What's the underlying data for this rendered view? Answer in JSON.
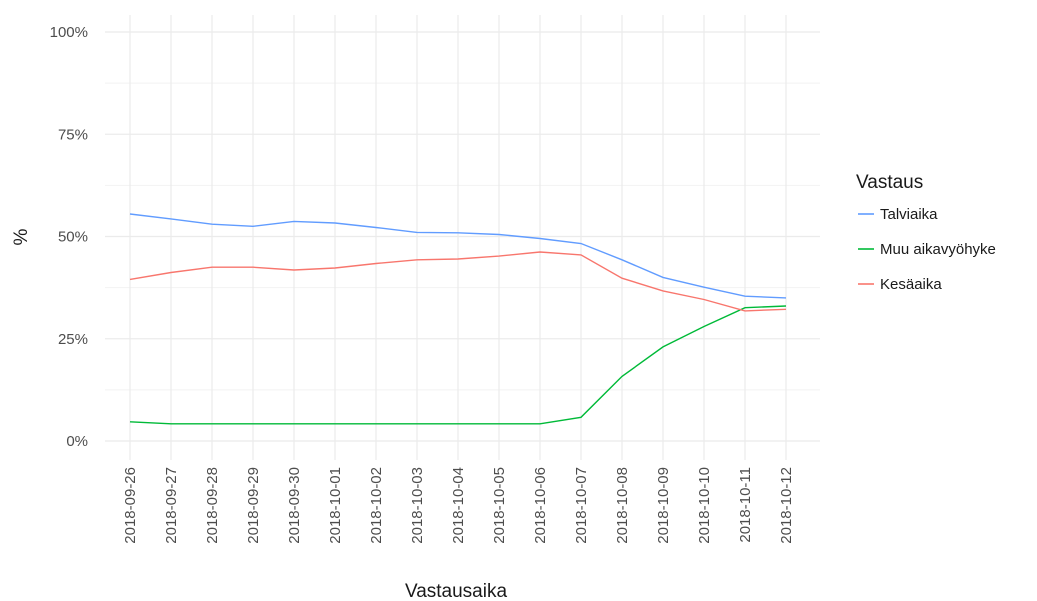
{
  "chart_data": {
    "type": "line",
    "xlabel": "Vastausaika",
    "ylabel": "%",
    "x": [
      "2018-09-26",
      "2018-09-27",
      "2018-09-28",
      "2018-09-29",
      "2018-09-30",
      "2018-10-01",
      "2018-10-02",
      "2018-10-03",
      "2018-10-04",
      "2018-10-05",
      "2018-10-06",
      "2018-10-07",
      "2018-10-08",
      "2018-10-09",
      "2018-10-10",
      "2018-10-11",
      "2018-10-12"
    ],
    "y_ticks": [
      "0%",
      "25%",
      "50%",
      "75%",
      "100%"
    ],
    "ylim": [
      0,
      100
    ],
    "grid": true,
    "legend": {
      "title": "Vastaus",
      "position": "right"
    },
    "series": [
      {
        "name": "Talviaika",
        "color": "#619CFF",
        "values": [
          55.5,
          54.3,
          53.0,
          52.5,
          53.7,
          53.3,
          52.2,
          51.0,
          50.9,
          50.5,
          49.5,
          48.3,
          44.3,
          40.0,
          37.6,
          35.4,
          35.0
        ]
      },
      {
        "name": "Muu aikavyöhyke",
        "color": "#00BA38",
        "values": [
          4.7,
          4.2,
          4.2,
          4.2,
          4.2,
          4.2,
          4.2,
          4.2,
          4.2,
          4.2,
          4.2,
          5.8,
          15.8,
          23.0,
          28.0,
          32.6,
          33.0
        ]
      },
      {
        "name": "Kesäaika",
        "color": "#F8766D",
        "values": [
          39.5,
          41.2,
          42.5,
          42.5,
          41.8,
          42.3,
          43.4,
          44.3,
          44.5,
          45.2,
          46.2,
          45.5,
          39.8,
          36.7,
          34.6,
          31.8,
          32.2
        ]
      }
    ]
  }
}
